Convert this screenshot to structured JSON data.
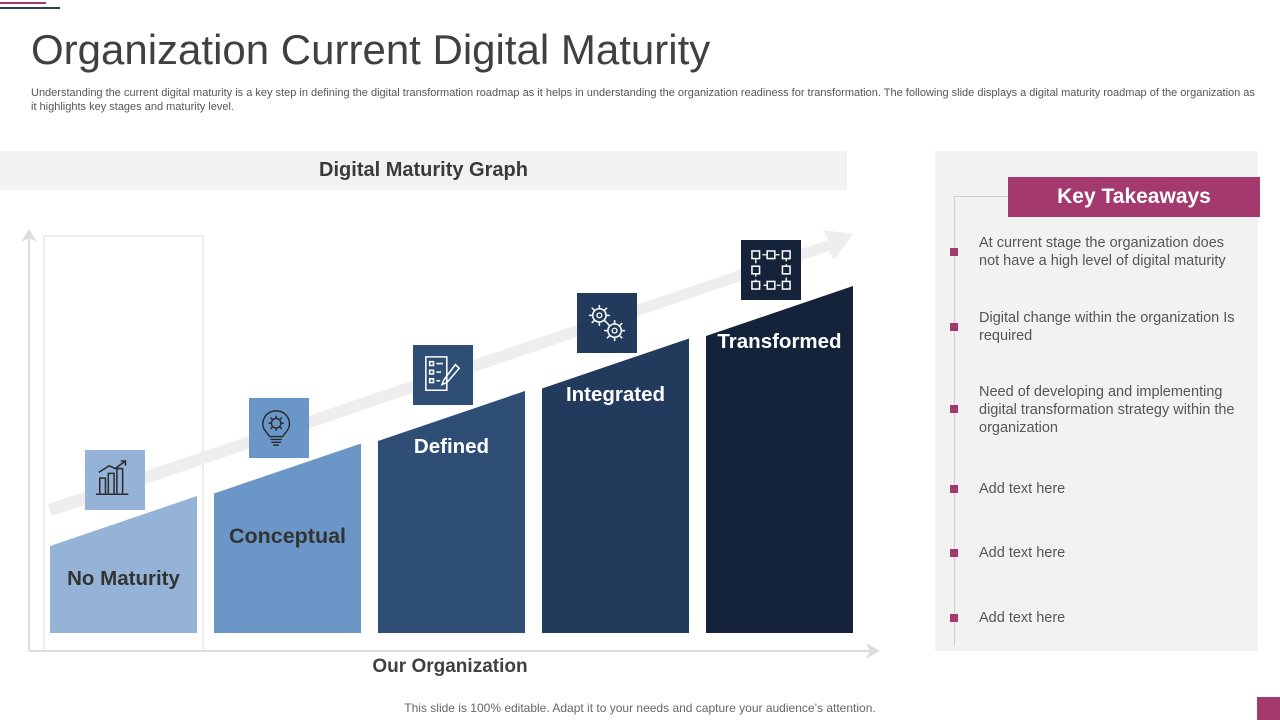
{
  "colors": {
    "accent": "#a3396c",
    "navy_line": "#2c3e5a",
    "bar_colors": [
      "#95b3d7",
      "#6a96c8",
      "#2e4e75",
      "#223a5c",
      "#15233a"
    ],
    "icon_box_colors": [
      "#95b3d7",
      "#6a96c8",
      "#2e4e75",
      "#223a5c",
      "#15233a"
    ],
    "label_colors": [
      "#333333",
      "#333333",
      "#ffffff",
      "#ffffff",
      "#ffffff"
    ]
  },
  "page": {
    "title": "Organization Current Digital Maturity",
    "subtitle": "Understanding the current digital maturity is a key step in defining the digital transformation roadmap as it helps in understanding the organization readiness for transformation. The following slide displays a digital maturity roadmap of the organization as it highlights key stages and maturity level."
  },
  "graph": {
    "header": "Digital Maturity Graph",
    "x_axis_label": "Our Organization",
    "stages": [
      {
        "label": "No Maturity",
        "icon": "growth-chart-icon",
        "level": 1
      },
      {
        "label": "Conceptual",
        "icon": "lightbulb-gear-icon",
        "level": 2
      },
      {
        "label": "Defined",
        "icon": "checklist-pencil-icon",
        "level": 3
      },
      {
        "label": "Integrated",
        "icon": "gears-icon",
        "level": 4
      },
      {
        "label": "Transformed",
        "icon": "transform-nodes-icon",
        "level": 5
      }
    ]
  },
  "takeaways": {
    "header": "Key Takeaways",
    "items": [
      "At current stage the organization does not have a high level of digital maturity",
      "Digital change within the organization Is required",
      "Need of developing and implementing digital transformation strategy within the organization",
      "Add text here",
      "Add text here",
      "Add text here"
    ]
  },
  "footer": {
    "note": "This slide is 100% editable. Adapt it to your needs and capture your audience’s attention."
  }
}
